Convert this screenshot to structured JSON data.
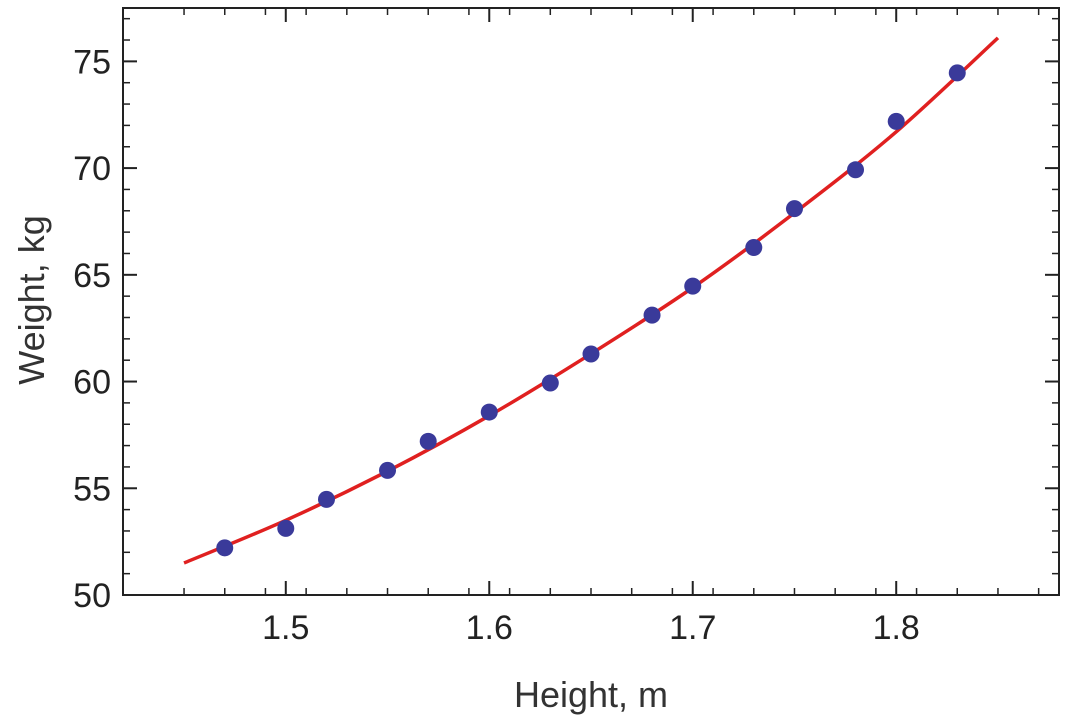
{
  "chart_data": {
    "type": "scatter",
    "title": "",
    "xlabel": "Height,  m",
    "ylabel": "Weight,  kg",
    "xlim": [
      1.42,
      1.88
    ],
    "ylim": [
      50,
      77.5
    ],
    "x_ticks": [
      1.5,
      1.6,
      1.7,
      1.8
    ],
    "x_tick_labels": [
      "1.5",
      "1.6",
      "1.7",
      "1.8"
    ],
    "y_ticks": [
      50,
      55,
      60,
      65,
      70,
      75
    ],
    "y_tick_labels": [
      "50",
      "55",
      "60",
      "65",
      "70",
      "75"
    ],
    "grid": false,
    "legend": "none",
    "points": {
      "color": "#3a3a9a",
      "x": [
        1.47,
        1.5,
        1.52,
        1.55,
        1.57,
        1.6,
        1.63,
        1.65,
        1.68,
        1.7,
        1.73,
        1.75,
        1.78,
        1.8,
        1.83
      ],
      "y": [
        52.21,
        53.12,
        54.48,
        55.84,
        57.2,
        58.57,
        59.93,
        61.29,
        63.11,
        64.47,
        66.28,
        68.1,
        69.92,
        72.19,
        74.46
      ]
    },
    "fit_curve": {
      "color": "#e02020",
      "x": [
        1.45,
        1.5,
        1.55,
        1.6,
        1.65,
        1.7,
        1.75,
        1.8,
        1.85
      ],
      "y": [
        51.5,
        53.5,
        55.8,
        58.4,
        61.3,
        64.4,
        67.9,
        71.7,
        76.1
      ]
    }
  }
}
